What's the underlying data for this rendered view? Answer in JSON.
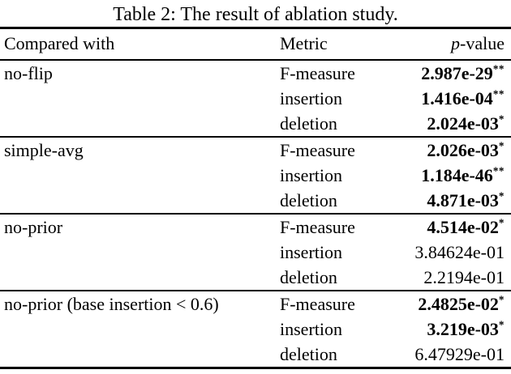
{
  "caption": "Table 2: The result of ablation study.",
  "header": {
    "compared_with": "Compared with",
    "metric": "Metric",
    "p_italic": "p",
    "p_rest": "-value"
  },
  "groups": [
    {
      "name": "no-flip",
      "rows": [
        {
          "metric": "F-measure",
          "value": "2.987e-29",
          "stars": "**",
          "bold": true
        },
        {
          "metric": "insertion",
          "value": "1.416e-04",
          "stars": "**",
          "bold": true
        },
        {
          "metric": "deletion",
          "value": "2.024e-03",
          "stars": "*",
          "bold": true
        }
      ]
    },
    {
      "name": "simple-avg",
      "rows": [
        {
          "metric": "F-measure",
          "value": "2.026e-03",
          "stars": "*",
          "bold": true
        },
        {
          "metric": "insertion",
          "value": "1.184e-46",
          "stars": "**",
          "bold": true
        },
        {
          "metric": "deletion",
          "value": "4.871e-03",
          "stars": "*",
          "bold": true
        }
      ]
    },
    {
      "name": "no-prior",
      "rows": [
        {
          "metric": "F-measure",
          "value": "4.514e-02",
          "stars": "*",
          "bold": true
        },
        {
          "metric": "insertion",
          "value": "3.84624e-01",
          "stars": "",
          "bold": false
        },
        {
          "metric": "deletion",
          "value": "2.2194e-01",
          "stars": "",
          "bold": false
        }
      ]
    },
    {
      "name": "no-prior (base insertion < 0.6)",
      "rows": [
        {
          "metric": "F-measure",
          "value": "2.4825e-02",
          "stars": "*",
          "bold": true
        },
        {
          "metric": "insertion",
          "value": "3.219e-03",
          "stars": "*",
          "bold": true
        },
        {
          "metric": "deletion",
          "value": "6.47929e-01",
          "stars": "",
          "bold": false
        }
      ]
    }
  ],
  "colors": {
    "text": "#000000",
    "background": "#ffffff",
    "rule": "#000000"
  }
}
